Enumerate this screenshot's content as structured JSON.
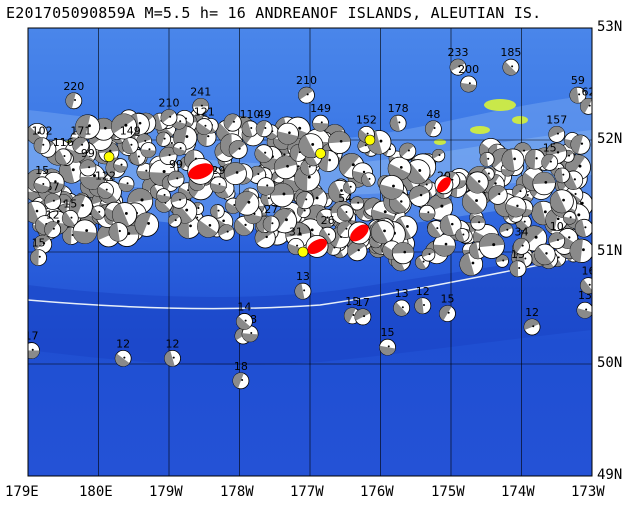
{
  "title": "E201705090859A M=5.5 h= 16 ANDREANOF ISLANDS, ALEUTIAN IS.",
  "lat_labels": [
    "53N",
    "52N",
    "51N",
    "50N",
    "49N"
  ],
  "lon_labels": [
    "179E",
    "180E",
    "179W",
    "178W",
    "177W",
    "176W",
    "175W",
    "174W",
    "173W"
  ],
  "colors": {
    "ocean_deep": "#1f4fd8",
    "ocean_mid": "#3a73e6",
    "shelf": "#6fa3f0",
    "land": "#c9e84a",
    "trench_line": "#e6eef9",
    "beachball_shade": "#888888",
    "highlight": "#ff0000"
  },
  "events": [
    {
      "lon": 179.05,
      "lat": 50.12,
      "depth": "17"
    },
    {
      "lon": -179.65,
      "lat": 50.05,
      "depth": "12"
    },
    {
      "lon": -178.95,
      "lat": 50.05,
      "depth": "12"
    },
    {
      "lon": -177.98,
      "lat": 49.85,
      "depth": "18"
    },
    {
      "lon": -177.95,
      "lat": 50.25,
      "depth": "23"
    },
    {
      "lon": -177.85,
      "lat": 50.27,
      "depth": "28"
    },
    {
      "lon": -177.93,
      "lat": 50.38,
      "depth": "14"
    },
    {
      "lon": -177.1,
      "lat": 50.65,
      "depth": "13"
    },
    {
      "lon": -176.4,
      "lat": 50.43,
      "depth": "15"
    },
    {
      "lon": -176.25,
      "lat": 50.42,
      "depth": "17"
    },
    {
      "lon": -175.9,
      "lat": 50.15,
      "depth": "15"
    },
    {
      "lon": -175.7,
      "lat": 50.5,
      "depth": "13"
    },
    {
      "lon": -175.4,
      "lat": 50.52,
      "depth": "12"
    },
    {
      "lon": -175.05,
      "lat": 50.45,
      "depth": "15"
    },
    {
      "lon": -173.85,
      "lat": 50.33,
      "depth": "12"
    },
    {
      "lon": -173.1,
      "lat": 50.48,
      "depth": "13"
    },
    {
      "lon": -173.05,
      "lat": 50.7,
      "depth": "16"
    },
    {
      "lon": -174.05,
      "lat": 50.85,
      "depth": "15"
    },
    {
      "lon": -174.0,
      "lat": 51.05,
      "depth": "34"
    },
    {
      "lon": -173.5,
      "lat": 51.1,
      "depth": "10"
    },
    {
      "lon": -177.2,
      "lat": 51.05,
      "depth": "31"
    },
    {
      "lon": -176.75,
      "lat": 51.15,
      "depth": "26"
    },
    {
      "lon": -177.55,
      "lat": 51.25,
      "depth": "27"
    },
    {
      "lon": -176.5,
      "lat": 51.2,
      "depth": "16"
    },
    {
      "lon": -178.9,
      "lat": 51.65,
      "depth": "99"
    },
    {
      "lon": -178.6,
      "lat": 51.62,
      "depth": "13"
    },
    {
      "lon": 179.5,
      "lat": 51.85,
      "depth": "116"
    },
    {
      "lon": 179.2,
      "lat": 51.95,
      "depth": "102"
    },
    {
      "lon": 179.75,
      "lat": 51.95,
      "depth": "171"
    },
    {
      "lon": 179.85,
      "lat": 51.75,
      "depth": "99"
    },
    {
      "lon": -179.9,
      "lat": 51.55,
      "depth": "122"
    },
    {
      "lon": -179.55,
      "lat": 51.95,
      "depth": "149"
    },
    {
      "lon": 179.65,
      "lat": 52.35,
      "depth": "220"
    },
    {
      "lon": -179.0,
      "lat": 52.2,
      "depth": "210"
    },
    {
      "lon": -178.55,
      "lat": 52.3,
      "depth": "241"
    },
    {
      "lon": -178.5,
      "lat": 52.12,
      "depth": "121"
    },
    {
      "lon": -177.85,
      "lat": 52.1,
      "depth": "110"
    },
    {
      "lon": -177.65,
      "lat": 52.1,
      "depth": "49"
    },
    {
      "lon": -177.05,
      "lat": 52.4,
      "depth": "210"
    },
    {
      "lon": -176.85,
      "lat": 52.15,
      "depth": "149"
    },
    {
      "lon": -176.2,
      "lat": 52.05,
      "depth": "152"
    },
    {
      "lon": -175.75,
      "lat": 52.15,
      "depth": "178"
    },
    {
      "lon": -175.25,
      "lat": 52.1,
      "depth": "48"
    },
    {
      "lon": -174.9,
      "lat": 52.65,
      "depth": "233"
    },
    {
      "lon": -174.75,
      "lat": 52.5,
      "depth": "200"
    },
    {
      "lon": -174.15,
      "lat": 52.65,
      "depth": "185"
    },
    {
      "lon": -173.2,
      "lat": 52.4,
      "depth": "59"
    },
    {
      "lon": -173.05,
      "lat": 52.3,
      "depth": "62"
    },
    {
      "lon": -173.5,
      "lat": 52.05,
      "depth": "157"
    },
    {
      "lon": -178.3,
      "lat": 51.6,
      "depth": "29"
    },
    {
      "lon": -176.5,
      "lat": 51.35,
      "depth": "54"
    },
    {
      "lon": -175.1,
      "lat": 51.55,
      "depth": "20"
    },
    {
      "lon": -173.6,
      "lat": 51.8,
      "depth": "15"
    },
    {
      "lon": 179.35,
      "lat": 51.45,
      "depth": "57"
    },
    {
      "lon": 179.2,
      "lat": 51.6,
      "depth": "15"
    },
    {
      "lon": 179.6,
      "lat": 51.3,
      "depth": "15"
    },
    {
      "lon": 179.15,
      "lat": 50.95,
      "depth": "15"
    },
    {
      "lon": 179.35,
      "lat": 51.2,
      "depth": "12"
    }
  ]
}
